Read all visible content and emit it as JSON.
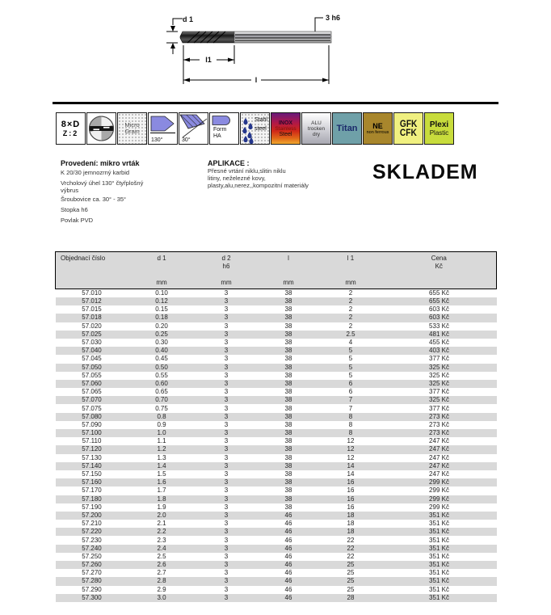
{
  "drawing": {
    "label_d1": "d 1",
    "label_shank": "3 h6",
    "label_l1": "l1",
    "label_l": "l"
  },
  "icons": {
    "ratio": {
      "top": "8×D",
      "bottom": "Z:2"
    },
    "micro_grain": {
      "line1": "Micro",
      "line2": "Grain"
    },
    "point_angle": {
      "label": "130°"
    },
    "helix_angle": {
      "label": "30°"
    },
    "form": {
      "line1": "Form",
      "line2": "HA"
    },
    "steel": {
      "line1": "Stahl",
      "line2": "steel"
    },
    "inox": {
      "line1": "INOX",
      "line2": "Stainless",
      "line3": "Steel"
    },
    "alu": {
      "line1": "ALU",
      "line2": "trocken",
      "line3": "dry"
    },
    "titan": {
      "label": "Titan"
    },
    "non_ferrous": {
      "line1": "NE",
      "line2": "non ferrous"
    },
    "gfk": {
      "line1": "GFK",
      "line2": "CFK"
    },
    "plexi": {
      "line1": "Plexi",
      "line2": "Plastic"
    }
  },
  "info": {
    "provedeni_title": "Provedení:  mikro vrták",
    "provedeni_lines": [
      "K 20/30 jemnozrný karbid",
      "Vrcholový úhel 130° čtyřplošný",
      "výbrus",
      "Šroubovice  ca. 30° - 35°",
      "Stopka h6",
      "Povlak  PVD"
    ],
    "aplikace_title": "APLIKACE :",
    "aplikace_lines": [
      "Přesné vrtání niklu,slitin niklu",
      "litiny, neželezné kovy,",
      "plasty,alu,nerez,,kompozitní materiály"
    ],
    "stock_label": "SKLADEM"
  },
  "table": {
    "col1_header": "Objednací číslo",
    "col2_header": "d 1",
    "col3_header": "d 2",
    "col3_sub": "h6",
    "col4_header": "l",
    "col5_header": "l 1",
    "col6_header": "Cena",
    "col6_sub": "Kč",
    "unit": "mm",
    "rows": [
      [
        "57.010",
        "0.10",
        "3",
        "38",
        "2",
        "655 Kč"
      ],
      [
        "57.012",
        "0.12",
        "3",
        "38",
        "2",
        "655 Kč"
      ],
      [
        "57.015",
        "0.15",
        "3",
        "38",
        "2",
        "603 Kč"
      ],
      [
        "57.018",
        "0.18",
        "3",
        "38",
        "2",
        "603 Kč"
      ],
      [
        "57.020",
        "0.20",
        "3",
        "38",
        "2",
        "533 Kč"
      ],
      [
        "57.025",
        "0.25",
        "3",
        "38",
        "2.5",
        "481 Kč"
      ],
      [
        "57.030",
        "0.30",
        "3",
        "38",
        "4",
        "455 Kč"
      ],
      [
        "57.040",
        "0.40",
        "3",
        "38",
        "5",
        "403 Kč"
      ],
      [
        "57.045",
        "0.45",
        "3",
        "38",
        "5",
        "377 Kč"
      ],
      [
        "57.050",
        "0.50",
        "3",
        "38",
        "5",
        "325 Kč"
      ],
      [
        "57.055",
        "0.55",
        "3",
        "38",
        "5",
        "325 Kč"
      ],
      [
        "57.060",
        "0.60",
        "3",
        "38",
        "6",
        "325 Kč"
      ],
      [
        "57.065",
        "0.65",
        "3",
        "38",
        "6",
        "377 Kč"
      ],
      [
        "57.070",
        "0.70",
        "3",
        "38",
        "7",
        "325 Kč"
      ],
      [
        "57.075",
        "0.75",
        "3",
        "38",
        "7",
        "377 Kč"
      ],
      [
        "57.080",
        "0.8",
        "3",
        "38",
        "8",
        "273 Kč"
      ],
      [
        "57.090",
        "0.9",
        "3",
        "38",
        "8",
        "273 Kč"
      ],
      [
        "57.100",
        "1.0",
        "3",
        "38",
        "8",
        "273 Kč"
      ],
      [
        "57.110",
        "1.1",
        "3",
        "38",
        "12",
        "247 Kč"
      ],
      [
        "57.120",
        "1.2",
        "3",
        "38",
        "12",
        "247 Kč"
      ],
      [
        "57.130",
        "1.3",
        "3",
        "38",
        "12",
        "247 Kč"
      ],
      [
        "57.140",
        "1.4",
        "3",
        "38",
        "14",
        "247 Kč"
      ],
      [
        "57.150",
        "1.5",
        "3",
        "38",
        "14",
        "247 Kč"
      ],
      [
        "57.160",
        "1.6",
        "3",
        "38",
        "16",
        "299 Kč"
      ],
      [
        "57.170",
        "1.7",
        "3",
        "38",
        "16",
        "299 Kč"
      ],
      [
        "57.180",
        "1.8",
        "3",
        "38",
        "16",
        "299 Kč"
      ],
      [
        "57.190",
        "1.9",
        "3",
        "38",
        "16",
        "299 Kč"
      ],
      [
        "57.200",
        "2.0",
        "3",
        "46",
        "18",
        "351 Kč"
      ],
      [
        "57.210",
        "2.1",
        "3",
        "46",
        "18",
        "351 Kč"
      ],
      [
        "57.220",
        "2.2",
        "3",
        "46",
        "18",
        "351 Kč"
      ],
      [
        "57.230",
        "2.3",
        "3",
        "46",
        "22",
        "351 Kč"
      ],
      [
        "57.240",
        "2.4",
        "3",
        "46",
        "22",
        "351 Kč"
      ],
      [
        "57.250",
        "2.5",
        "3",
        "46",
        "22",
        "351 Kč"
      ],
      [
        "57.260",
        "2.6",
        "3",
        "46",
        "25",
        "351 Kč"
      ],
      [
        "57.270",
        "2.7",
        "3",
        "46",
        "25",
        "351 Kč"
      ],
      [
        "57.280",
        "2.8",
        "3",
        "46",
        "25",
        "351 Kč"
      ],
      [
        "57.290",
        "2.9",
        "3",
        "46",
        "25",
        "351 Kč"
      ],
      [
        "57.300",
        "3.0",
        "3",
        "46",
        "28",
        "351 Kč"
      ]
    ]
  },
  "colors": {
    "icon_blue": "#8a8ae0",
    "inox_gradient": [
      "#6a1a7a",
      "#b01848",
      "#d02818",
      "#e06818",
      "#f0a830"
    ],
    "titan_bg": "#6fa0a8",
    "non_ferrous_bg": "#a8862c",
    "gfk_bg": "#f0f080",
    "plexi_bg": "#c8dc3c",
    "row_stripe": "#d9d9d9",
    "header_bg": "#d9d9d9"
  }
}
